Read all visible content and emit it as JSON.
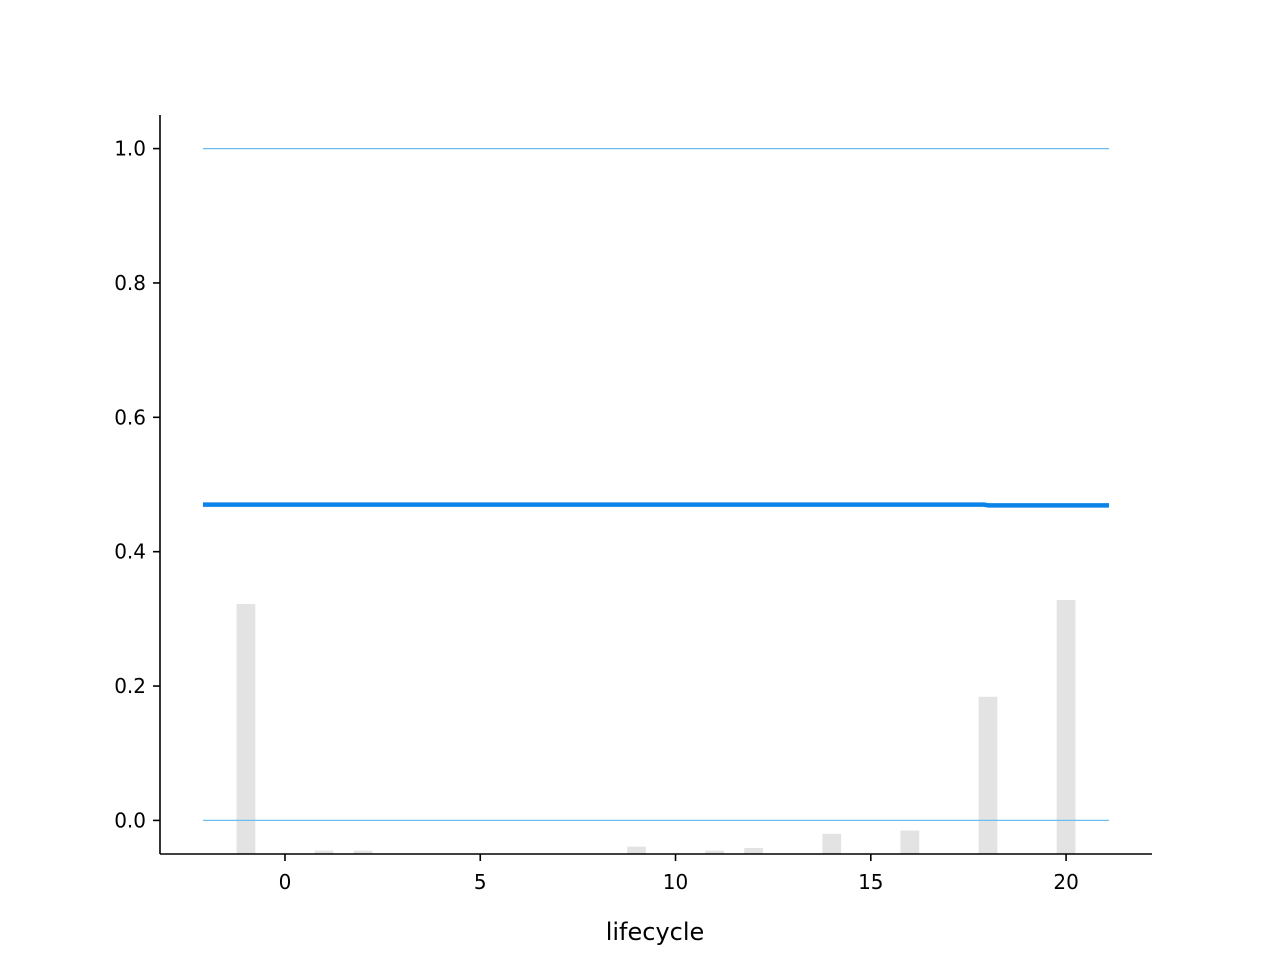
{
  "chart_data": {
    "type": "line",
    "title": "",
    "xlabel": "lifecycle",
    "ylabel": "",
    "xlim": [
      -3.2,
      22.2
    ],
    "ylim": [
      -0.05,
      1.05
    ],
    "x_ticks": [
      0,
      5,
      10,
      15,
      20
    ],
    "y_ticks": [
      0.0,
      0.2,
      0.4,
      0.6,
      0.8,
      1.0
    ],
    "y_tick_labels": [
      "0.0",
      "0.2",
      "0.4",
      "0.6",
      "0.8",
      "1.0"
    ],
    "grid": false,
    "reference_lines": [
      {
        "y": 1.0,
        "x_from": -2.1,
        "x_to": 21.1
      },
      {
        "y": 0.0,
        "x_from": -2.1,
        "x_to": 21.1
      }
    ],
    "series": [
      {
        "x": [
          -2.1,
          0,
          5,
          10,
          15,
          17.9,
          18,
          21.1
        ],
        "values": [
          0.47,
          0.47,
          0.47,
          0.47,
          0.47,
          0.47,
          0.469,
          0.469
        ]
      }
    ],
    "histogram": {
      "x": [
        -1,
        1,
        2,
        9,
        11,
        12,
        14,
        16,
        18,
        20
      ],
      "values": [
        0.322,
        -0.045,
        -0.045,
        -0.039,
        -0.045,
        -0.041,
        -0.02,
        -0.015,
        0.184,
        0.328
      ]
    },
    "colors": {
      "line": "#0a84e8",
      "reference": "#6cbef2",
      "bars": "#e3e3e3",
      "axis": "#000000"
    }
  }
}
